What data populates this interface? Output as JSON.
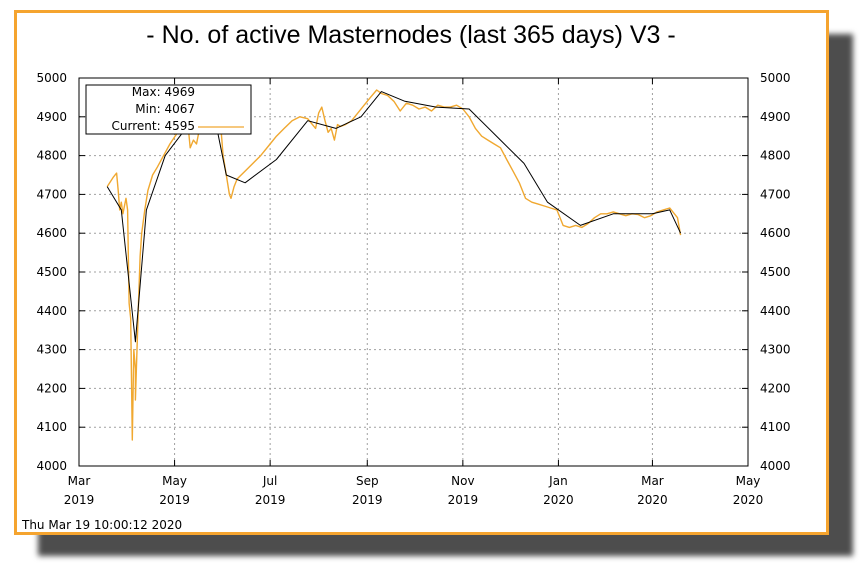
{
  "chart_data": {
    "type": "line",
    "title": "- No. of active Masternodes (last 365 days) V3 -",
    "timestamp": "Thu Mar 19 10:00:12 2020",
    "ylim": [
      4000,
      5000
    ],
    "yticks": [
      4000,
      4100,
      4200,
      4300,
      4400,
      4500,
      4600,
      4700,
      4800,
      4900,
      5000
    ],
    "xticks": [
      {
        "month": "Mar",
        "year": "2019",
        "date": "2019-03-01"
      },
      {
        "month": "May",
        "year": "2019",
        "date": "2019-05-01"
      },
      {
        "month": "Jul",
        "year": "2019",
        "date": "2019-07-01"
      },
      {
        "month": "Sep",
        "year": "2019",
        "date": "2019-09-01"
      },
      {
        "month": "Nov",
        "year": "2019",
        "date": "2019-11-01"
      },
      {
        "month": "Jan",
        "year": "2020",
        "date": "2020-01-01"
      },
      {
        "month": "Mar",
        "year": "2020",
        "date": "2020-03-01"
      },
      {
        "month": "May",
        "year": "2020",
        "date": "2020-05-01"
      }
    ],
    "xlim": [
      "2019-03-01",
      "2020-05-01"
    ],
    "grid": true,
    "legend": {
      "placement": "top-left",
      "max_label": "Max:",
      "max_value": "4969",
      "min_label": "Min:",
      "min_value": "4067",
      "current_label": "Current:",
      "current_value": "4595"
    },
    "colors": {
      "raw": "#f0a830",
      "smooth": "#000000",
      "frame": "#f5a42f"
    },
    "series": [
      {
        "style": "raw",
        "x": [
          "2019-03-19",
          "2019-03-23",
          "2019-03-25",
          "2019-03-26",
          "2019-03-27",
          "2019-03-28",
          "2019-03-29",
          "2019-03-31",
          "2019-04-01",
          "2019-04-02",
          "2019-04-03",
          "2019-04-04",
          "2019-04-05",
          "2019-04-06",
          "2019-04-06",
          "2019-04-07",
          "2019-04-08",
          "2019-04-09",
          "2019-04-10",
          "2019-04-12",
          "2019-04-14",
          "2019-04-17",
          "2019-04-20",
          "2019-04-24",
          "2019-04-28",
          "2019-05-03",
          "2019-05-06",
          "2019-05-08",
          "2019-05-10",
          "2019-05-11",
          "2019-05-13",
          "2019-05-15",
          "2019-05-17",
          "2019-05-20",
          "2019-05-23",
          "2019-05-26",
          "2019-05-28",
          "2019-05-30",
          "2019-06-01",
          "2019-06-03",
          "2019-06-05",
          "2019-06-06",
          "2019-06-08",
          "2019-06-10",
          "2019-06-15",
          "2019-06-20",
          "2019-06-25",
          "2019-07-01",
          "2019-07-05",
          "2019-07-10",
          "2019-07-15",
          "2019-07-20",
          "2019-07-25",
          "2019-07-28",
          "2019-07-30",
          "2019-08-01",
          "2019-08-03",
          "2019-08-05",
          "2019-08-07",
          "2019-08-09",
          "2019-08-11",
          "2019-08-13",
          "2019-08-15",
          "2019-08-18",
          "2019-08-22",
          "2019-08-26",
          "2019-08-30",
          "2019-09-03",
          "2019-09-07",
          "2019-09-10",
          "2019-09-14",
          "2019-09-18",
          "2019-09-22",
          "2019-09-26",
          "2019-09-30",
          "2019-10-04",
          "2019-10-08",
          "2019-10-12",
          "2019-10-16",
          "2019-10-20",
          "2019-10-24",
          "2019-10-28",
          "2019-11-01",
          "2019-11-05",
          "2019-11-09",
          "2019-11-13",
          "2019-11-17",
          "2019-11-21",
          "2019-11-25",
          "2019-11-29",
          "2019-12-03",
          "2019-12-07",
          "2019-12-11",
          "2019-12-15",
          "2019-12-19",
          "2019-12-23",
          "2019-12-27",
          "2019-12-31",
          "2020-01-04",
          "2020-01-08",
          "2020-01-12",
          "2020-01-16",
          "2020-01-20",
          "2020-01-24",
          "2020-01-28",
          "2020-02-01",
          "2020-02-05",
          "2020-02-09",
          "2020-02-13",
          "2020-02-17",
          "2020-02-21",
          "2020-02-25",
          "2020-02-29",
          "2020-03-04",
          "2020-03-08",
          "2020-03-12",
          "2020-03-15",
          "2020-03-17",
          "2020-03-19"
        ],
        "values": [
          4720,
          4745,
          4755,
          4710,
          4660,
          4680,
          4650,
          4690,
          4660,
          4420,
          4380,
          4067,
          4300,
          4250,
          4170,
          4300,
          4420,
          4540,
          4600,
          4660,
          4710,
          4750,
          4770,
          4800,
          4830,
          4860,
          4870,
          4880,
          4860,
          4820,
          4840,
          4830,
          4870,
          4900,
          4930,
          4940,
          4945,
          4900,
          4800,
          4750,
          4700,
          4690,
          4720,
          4740,
          4760,
          4780,
          4800,
          4830,
          4850,
          4870,
          4890,
          4900,
          4895,
          4880,
          4870,
          4910,
          4925,
          4890,
          4860,
          4870,
          4840,
          4880,
          4875,
          4880,
          4890,
          4910,
          4930,
          4950,
          4969,
          4960,
          4955,
          4940,
          4915,
          4935,
          4930,
          4920,
          4925,
          4915,
          4930,
          4925,
          4925,
          4930,
          4920,
          4900,
          4870,
          4850,
          4840,
          4830,
          4820,
          4790,
          4760,
          4730,
          4690,
          4680,
          4675,
          4670,
          4665,
          4660,
          4620,
          4615,
          4620,
          4615,
          4625,
          4640,
          4650,
          4650,
          4655,
          4650,
          4645,
          4650,
          4648,
          4640,
          4645,
          4655,
          4660,
          4665,
          4650,
          4640,
          4595
        ]
      },
      {
        "style": "smooth",
        "x": [
          "2019-03-19",
          "2019-03-28",
          "2019-04-06",
          "2019-04-13",
          "2019-04-25",
          "2019-05-10",
          "2019-05-25",
          "2019-06-03",
          "2019-06-15",
          "2019-07-05",
          "2019-07-25",
          "2019-08-12",
          "2019-08-28",
          "2019-09-10",
          "2019-09-25",
          "2019-10-15",
          "2019-11-05",
          "2019-11-25",
          "2019-12-10",
          "2019-12-25",
          "2020-01-15",
          "2020-02-05",
          "2020-03-01",
          "2020-03-12",
          "2020-03-19"
        ],
        "values": [
          4720,
          4660,
          4320,
          4660,
          4800,
          4880,
          4930,
          4750,
          4730,
          4790,
          4890,
          4870,
          4900,
          4965,
          4940,
          4925,
          4920,
          4840,
          4780,
          4680,
          4620,
          4650,
          4650,
          4660,
          4600
        ]
      }
    ]
  }
}
